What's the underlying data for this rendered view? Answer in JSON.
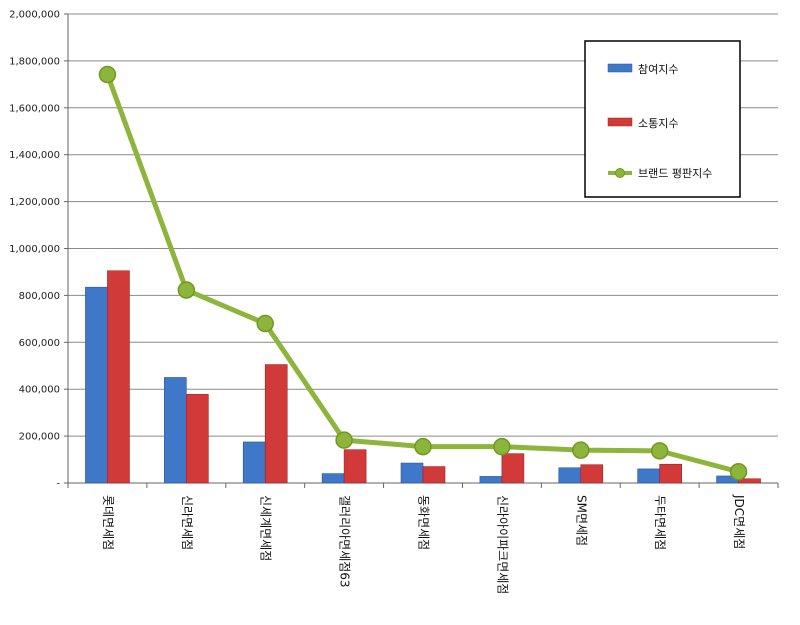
{
  "chart_data": {
    "type": "bar",
    "title": "",
    "xlabel": "",
    "ylabel": "",
    "ylim": [
      0,
      2000000
    ],
    "grid": true,
    "legend_position": "top-right",
    "yticks": [
      0,
      200000,
      400000,
      600000,
      800000,
      1000000,
      1200000,
      1400000,
      1600000,
      1800000,
      2000000
    ],
    "ytick_labels": [
      "-",
      "200,000",
      "400,000",
      "600,000",
      "800,000",
      "1,000,000",
      "1,200,000",
      "1,400,000",
      "1,600,000",
      "1,800,000",
      "2,000,000"
    ],
    "categories": [
      "롯데면세점",
      "신라면세점",
      "신세계면세점",
      "갤러리아면세점63",
      "동화면세점",
      "신라아이파크면세점",
      "SM면세점",
      "두타면세점",
      "JDC면세점"
    ],
    "series": [
      {
        "name": "참여지수",
        "type": "bar",
        "color": "#3f78c8",
        "values": [
          835000,
          450000,
          175000,
          40000,
          85000,
          28000,
          65000,
          60000,
          30000
        ]
      },
      {
        "name": "소통지수",
        "type": "bar",
        "color": "#d23a3a",
        "values": [
          905000,
          378000,
          505000,
          142000,
          70000,
          125000,
          78000,
          80000,
          18000
        ]
      },
      {
        "name": "브랜드 평판지수",
        "type": "line",
        "color": "#8db43b",
        "values": [
          1742000,
          823000,
          680000,
          183000,
          155000,
          155000,
          140000,
          137000,
          48000
        ]
      }
    ]
  }
}
